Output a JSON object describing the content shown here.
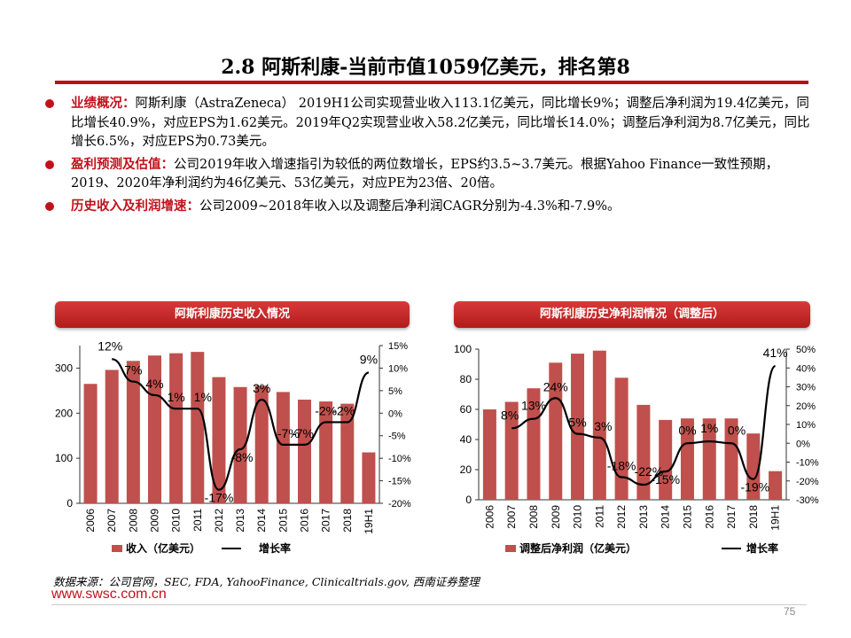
{
  "slide": {
    "title": "2.8 阿斯利康-当前市值1059亿美元，排名第8",
    "bullets": [
      {
        "lead": "业绩概况：",
        "text": "阿斯利康（AstraZeneca） 2019H1公司实现营业收入113.1亿美元，同比增长9%；调整后净利润为19.4亿美元，同比增长40.9%，对应EPS为1.62美元。2019年Q2实现营业收入58.2亿美元，同比增长14.0%；调整后净利润为8.7亿美元，同比增长6.5%，对应EPS为0.73美元。"
      },
      {
        "lead": "盈利预测及估值：",
        "text": "公司2019年收入增速指引为较低的两位数增长，EPS约3.5~3.7美元。根据Yahoo Finance一致性预期，2019、2020年净利润约为46亿美元、53亿美元，对应PE为23倍、20倍。"
      },
      {
        "lead": "历史收入及利润增速：",
        "text": "公司2009~2018年收入以及调整后净利润CAGR分别为-4.3%和-7.9%。"
      }
    ],
    "source": "数据来源：公司官网，SEC, FDA, YahooFinance, Clinicaltrials.gov, 西南证券整理",
    "website": "www.swsc.com.cn",
    "page_number": "75"
  },
  "colors": {
    "bar": "#c0504d",
    "line": "#000000",
    "accent": "#c1121c"
  },
  "chart_data": [
    {
      "type": "bar",
      "title": "阿斯利康历史收入情况",
      "categories": [
        "2006",
        "2007",
        "2008",
        "2009",
        "2010",
        "2011",
        "2012",
        "2013",
        "2014",
        "2015",
        "2016",
        "2017",
        "2018",
        "19H1"
      ],
      "series": [
        {
          "name": "收入（亿美元）",
          "axis": "left",
          "kind": "bar",
          "values": [
            265,
            296,
            316,
            328,
            333,
            336,
            280,
            258,
            261,
            247,
            230,
            226,
            221,
            113
          ]
        },
        {
          "name": "增长率",
          "axis": "right",
          "kind": "line",
          "unit": "%",
          "values": [
            null,
            12,
            7,
            4,
            1,
            1,
            -17,
            -8,
            3,
            -7,
            -7,
            -2,
            -2,
            9
          ],
          "labels": [
            "",
            "12%",
            "7%",
            "4%",
            "1%",
            "1%",
            "-17%",
            "-8%",
            "3%",
            "-7%",
            "-7%",
            "-2%",
            "-2%",
            "9%"
          ]
        }
      ],
      "ylim_left": [
        0,
        350
      ],
      "yticks_left": [
        0,
        100,
        200,
        300
      ],
      "ylim_right": [
        -20,
        15
      ],
      "yticks_right": [
        "15%",
        "10%",
        "5%",
        "0%",
        "-5%",
        "-10%",
        "-15%",
        "-20%"
      ],
      "legend": "bottom"
    },
    {
      "type": "bar",
      "title": "阿斯利康历史净利润情况（调整后）",
      "categories": [
        "2006",
        "2007",
        "2008",
        "2009",
        "2010",
        "2011",
        "2012",
        "2013",
        "2014",
        "2015",
        "2016",
        "2017",
        "2018",
        "19H1"
      ],
      "series": [
        {
          "name": "调整后净利润（亿美元）",
          "axis": "left",
          "kind": "bar",
          "values": [
            60,
            65,
            74,
            91,
            97,
            99,
            81,
            63,
            53,
            54,
            54,
            54,
            44,
            19
          ]
        },
        {
          "name": "增长率",
          "axis": "right",
          "kind": "line",
          "unit": "%",
          "values": [
            null,
            8,
            13,
            24,
            5,
            3,
            -18,
            -22,
            -15,
            0,
            1,
            0,
            -19,
            41
          ],
          "labels": [
            "",
            "8%",
            "13%",
            "24%",
            "5%",
            "3%",
            "-18%",
            "-22%",
            "-15%",
            "0%",
            "1%",
            "0%",
            "-19%",
            "41%"
          ]
        }
      ],
      "ylim_left": [
        0,
        100
      ],
      "yticks_left": [
        0,
        20,
        40,
        60,
        80,
        100
      ],
      "ylim_right": [
        -30,
        50
      ],
      "yticks_right": [
        "50%",
        "40%",
        "30%",
        "20%",
        "10%",
        "0%",
        "-10%",
        "-20%",
        "-30%"
      ],
      "legend": "bottom"
    }
  ]
}
